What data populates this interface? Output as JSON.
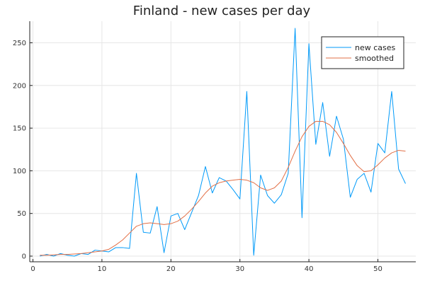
{
  "chart_data": {
    "type": "line",
    "title": "Finland - new cases per day",
    "xlabel": "",
    "ylabel": "",
    "xlim": [
      0,
      55
    ],
    "ylim": [
      -8,
      275
    ],
    "xticks": [
      0,
      10,
      20,
      30,
      40,
      50
    ],
    "yticks": [
      0,
      50,
      100,
      150,
      200,
      250
    ],
    "grid": true,
    "legend_position": "top-right",
    "x": [
      1,
      2,
      3,
      4,
      5,
      6,
      7,
      8,
      9,
      10,
      11,
      12,
      13,
      14,
      15,
      16,
      17,
      18,
      19,
      20,
      21,
      22,
      23,
      24,
      25,
      26,
      27,
      28,
      29,
      30,
      31,
      32,
      33,
      34,
      35,
      36,
      37,
      38,
      39,
      40,
      41,
      42,
      43,
      44,
      45,
      46,
      47,
      48,
      49,
      50,
      51,
      52,
      53,
      54
    ],
    "series": [
      {
        "name": "new cases",
        "color": "#009AF9",
        "values": [
          0,
          2,
          0,
          3,
          1,
          0,
          3,
          2,
          7,
          6,
          5,
          10,
          10,
          9,
          97,
          28,
          27,
          58,
          4,
          47,
          50,
          31,
          51,
          71,
          105,
          74,
          92,
          88,
          78,
          67,
          193,
          1,
          95,
          71,
          62,
          72,
          97,
          267,
          45,
          249,
          131,
          180,
          117,
          164,
          137,
          69,
          90,
          97,
          75,
          132,
          121,
          193,
          102,
          85
        ]
      },
      {
        "name": "smoothed",
        "color": "#E26F46",
        "values": [
          1,
          1,
          1.5,
          2,
          2,
          2.5,
          3,
          4,
          5,
          6,
          8,
          13,
          19,
          27,
          35,
          38,
          39,
          38,
          37,
          38,
          41,
          47,
          55,
          64,
          74,
          82,
          86,
          88,
          89,
          90,
          89,
          86,
          80,
          77,
          80,
          88,
          104,
          123,
          140,
          152,
          158,
          158,
          154,
          145,
          132,
          118,
          106,
          99,
          100,
          107,
          115,
          121,
          124,
          123
        ]
      }
    ]
  }
}
